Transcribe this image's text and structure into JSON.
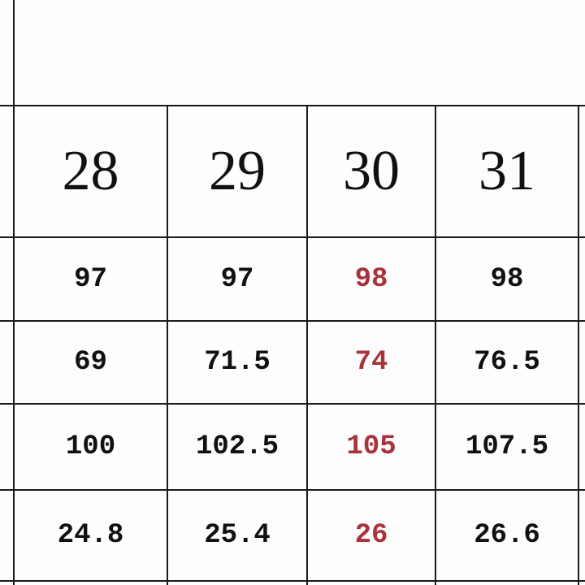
{
  "table": {
    "sizes": [
      "28",
      "29",
      "30",
      "31"
    ],
    "rows": [
      [
        "97",
        "97",
        "98",
        "98"
      ],
      [
        "69",
        "71.5",
        "74",
        "76.5"
      ],
      [
        "100",
        "102.5",
        "105",
        "107.5"
      ],
      [
        "24.8",
        "25.4",
        "26",
        "26.6"
      ]
    ],
    "highlighted_column": "30",
    "highlight_color": "#a8333a"
  }
}
